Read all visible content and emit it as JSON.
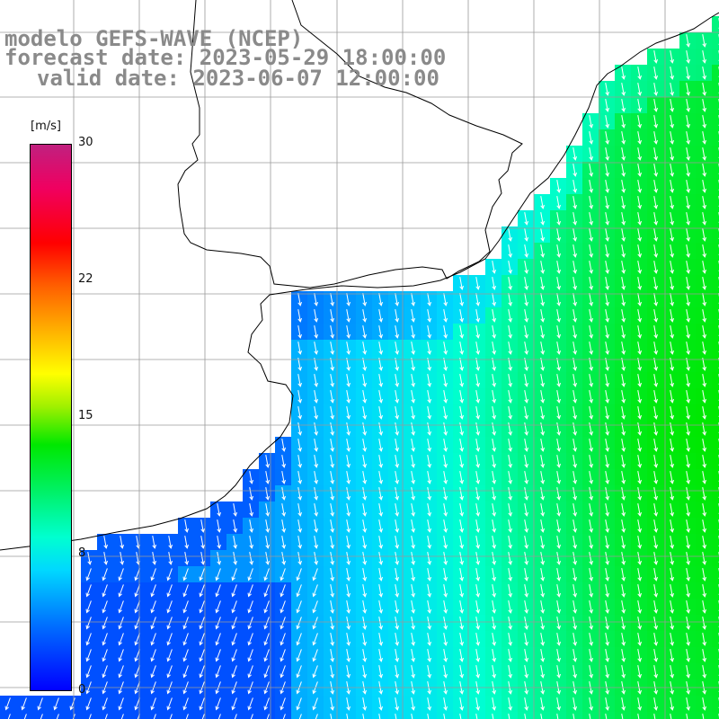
{
  "title": {
    "line1": "modelo GEFS-WAVE (NCEP)",
    "line2": "forecast date: 2023-05-29 18:00:00",
    "line3": "valid date: 2023-06-07 12:00:00"
  },
  "colorbar": {
    "unit": "[m/s]",
    "min": 0,
    "max": 30,
    "tick_labels": [
      "30",
      "22",
      "15",
      "8",
      "0"
    ],
    "tick_values": [
      30,
      22,
      15,
      8,
      0
    ]
  },
  "map": {
    "field": "wind speed with direction arrows",
    "ocean_grid_speed_range_ms": [
      3,
      13
    ],
    "land_color": "#ffffff",
    "coastline_color": "#000000",
    "grid_color": "#a0a0a0",
    "arrow_color": "#ffffff",
    "icons": [
      "wind-arrow-icon"
    ]
  }
}
